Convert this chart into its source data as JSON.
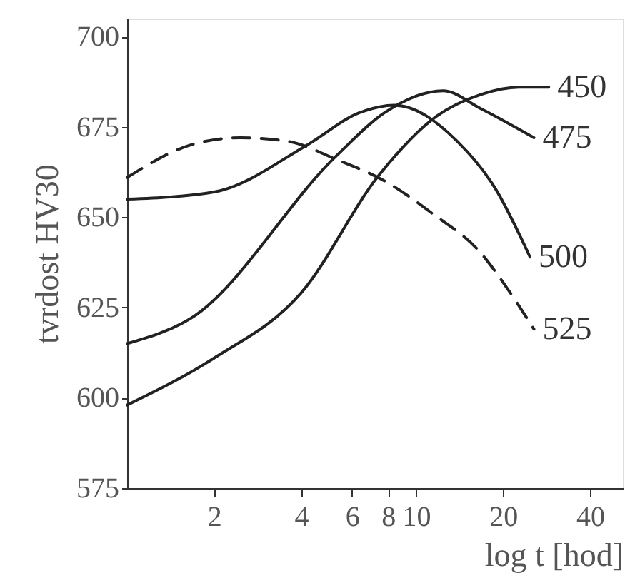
{
  "chart_data": {
    "type": "line",
    "xlabel": "log t [hod]",
    "ylabel": "tvrdost HV30",
    "log": "x",
    "xlim": [
      1,
      52
    ],
    "xticks": [
      2,
      4,
      6,
      8,
      10,
      20,
      40
    ],
    "ylim": [
      575,
      705
    ],
    "yticks": [
      575,
      600,
      625,
      650,
      675,
      700
    ],
    "grid": false,
    "marker": "none",
    "series": [
      {
        "name": "450",
        "color": "#222222",
        "line_style": "solid",
        "x": [
          1,
          2,
          4,
          7.5,
          11.8,
          16.8,
          22.7,
          28.8
        ],
        "values": [
          598,
          611,
          629,
          662,
          678,
          684,
          686,
          686
        ]
      },
      {
        "name": "475",
        "color": "#222222",
        "line_style": "solid",
        "x": [
          1,
          1.66,
          5.3,
          7.8,
          12.4,
          16.8,
          25.6
        ],
        "values": [
          615,
          622,
          667,
          679,
          685,
          680,
          672
        ]
      },
      {
        "name": "500",
        "color": "#222222",
        "line_style": "solid",
        "x": [
          1,
          2,
          4.2,
          6.4,
          8.4,
          13.9,
          18.8,
          24.8
        ],
        "values": [
          655,
          657,
          670,
          679,
          681,
          671,
          658,
          639
        ]
      },
      {
        "name": "525",
        "color": "#222222",
        "line_style": "dashed",
        "x": [
          1,
          1.66,
          2.46,
          3.6,
          5.3,
          7.8,
          11.4,
          16.8,
          20.4,
          25.6
        ],
        "values": [
          661,
          670,
          672,
          671,
          666,
          660,
          651,
          640,
          631,
          619
        ]
      }
    ]
  }
}
